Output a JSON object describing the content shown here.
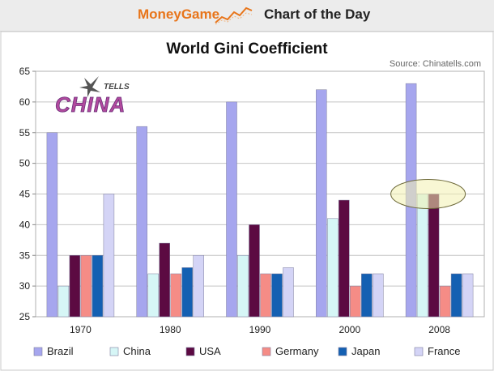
{
  "header": {
    "brand": "MoneyGame",
    "section": "Chart of the Day",
    "trend_icon": "trend-line-icon"
  },
  "logo": {
    "text_small": "TELLS",
    "text_big": "CHINA",
    "icon": "chinatells-logo"
  },
  "chart_data": {
    "type": "bar",
    "title": "World Gini Coefficient",
    "source": "Source: Chinatells.com",
    "categories": [
      "1970",
      "1980",
      "1990",
      "2000",
      "2008"
    ],
    "series": [
      {
        "name": "Brazil",
        "values": [
          55,
          56,
          60,
          62,
          63
        ]
      },
      {
        "name": "China",
        "values": [
          30,
          32,
          35,
          41,
          45
        ]
      },
      {
        "name": "USA",
        "values": [
          35,
          37,
          40,
          44,
          45
        ]
      },
      {
        "name": "Germany",
        "values": [
          35,
          32,
          32,
          30,
          30
        ]
      },
      {
        "name": "Japan",
        "values": [
          35,
          33,
          32,
          32,
          32
        ]
      },
      {
        "name": "France",
        "values": [
          45,
          35,
          33,
          32,
          32
        ]
      }
    ],
    "ylim": [
      25,
      65
    ],
    "yticks": [
      25,
      30,
      35,
      40,
      45,
      50,
      55,
      60,
      65
    ],
    "grid": true,
    "legend": "bottom",
    "highlight": {
      "category": "2008",
      "series": [
        "China",
        "USA"
      ],
      "shape": "ellipse"
    },
    "colors": {
      "Brazil": "#a6a6ee",
      "China": "#d6f6f6",
      "USA": "#5c0a42",
      "Germany": "#f58c86",
      "Japan": "#1460b2",
      "France": "#d4d4f6"
    }
  }
}
